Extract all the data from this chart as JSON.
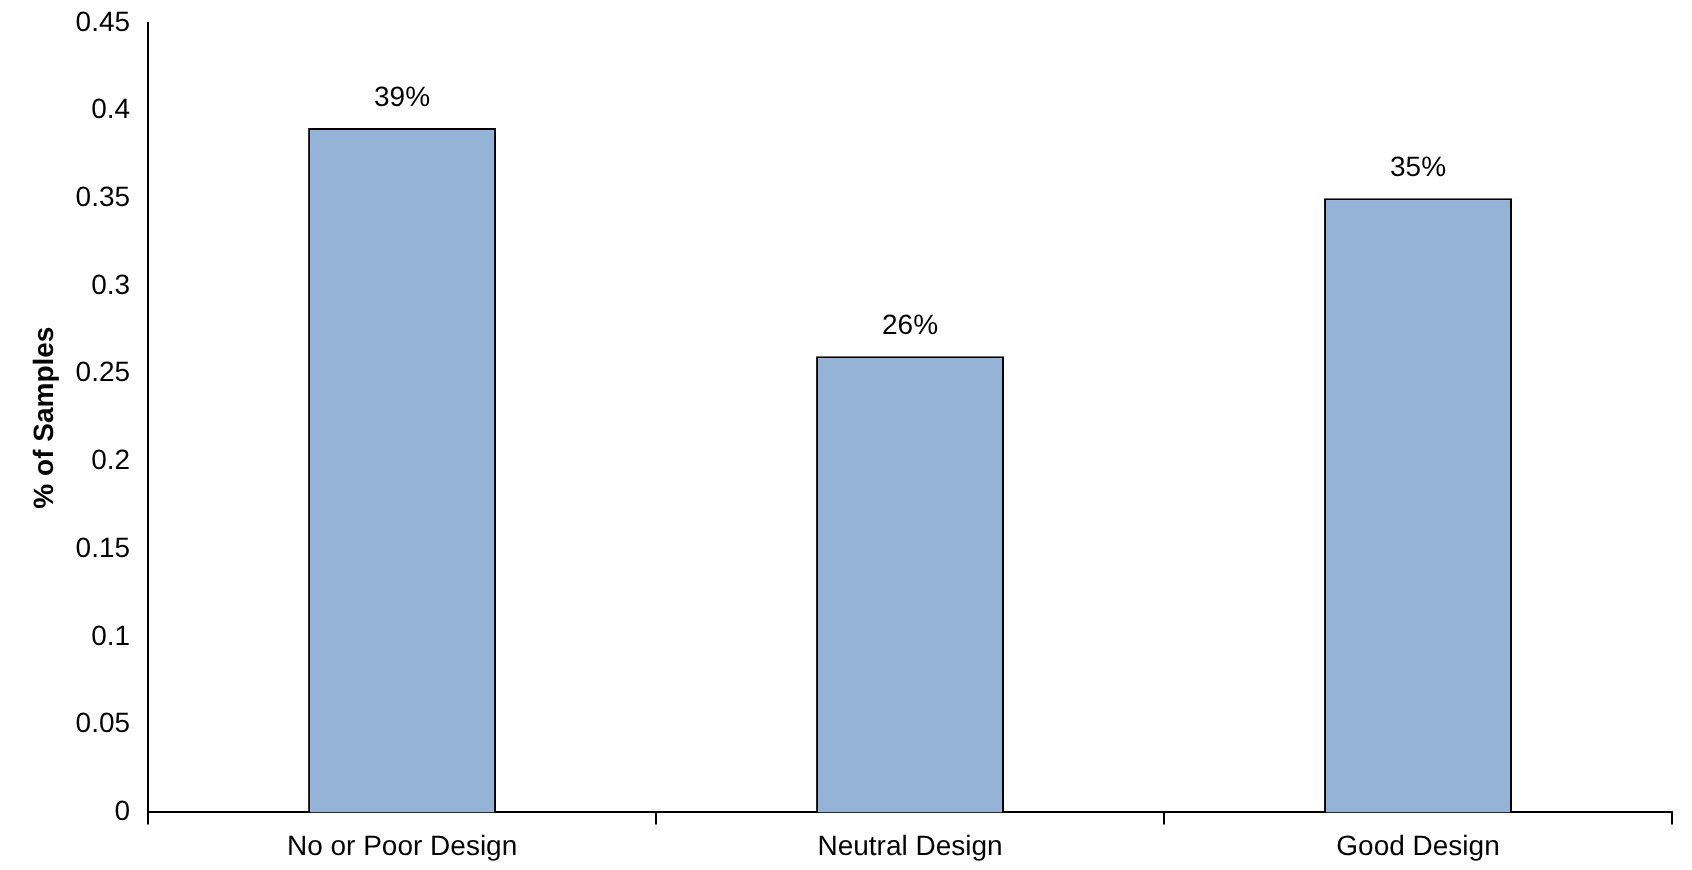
{
  "chart_data": {
    "type": "bar",
    "ylabel": "% of Samples",
    "categories": [
      "No or Poor Design",
      "Neutral Design",
      "Good Design"
    ],
    "values": [
      0.39,
      0.26,
      0.35
    ],
    "value_labels": [
      "39%",
      "26%",
      "35%"
    ],
    "color": "#95b3d7",
    "ylim": [
      0,
      0.45
    ],
    "yticks": [
      0,
      0.05,
      0.1,
      0.15,
      0.2,
      0.25,
      0.3,
      0.35,
      0.4,
      0.45
    ],
    "grid": false,
    "legend": false
  }
}
